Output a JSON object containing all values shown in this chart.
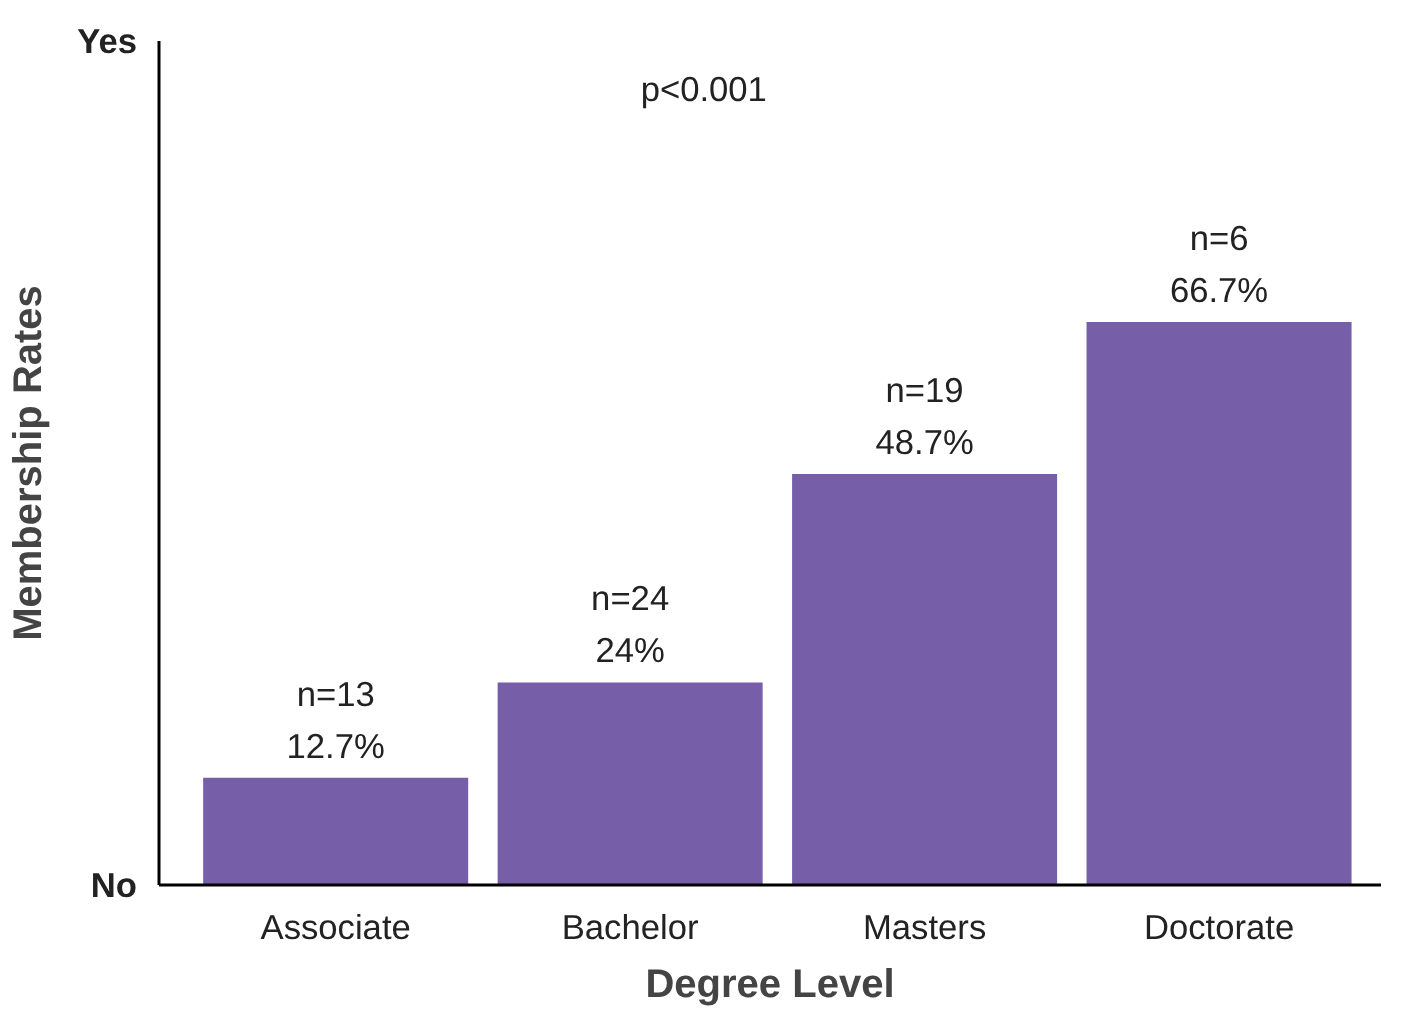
{
  "chart_data": {
    "type": "bar",
    "categories": [
      "Associate",
      "Bachelor",
      "Masters",
      "Doctorate"
    ],
    "values": [
      12.7,
      24,
      48.7,
      66.7
    ],
    "value_labels": [
      "n=13\n12.7%",
      "n=24\n24%",
      "n=19\n48.7%",
      "n=6\n66.7%"
    ],
    "color": "#775ea8",
    "xlabel": "Degree Level",
    "ylabel": "Membership Rates",
    "ylim": [
      0,
      100
    ],
    "annotations": [
      "No",
      "Yes",
      "p<0.001"
    ]
  }
}
